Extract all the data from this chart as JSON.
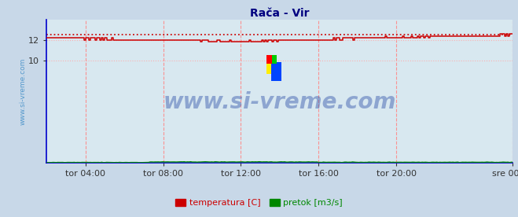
{
  "title": "Rača - Vir",
  "title_color": "#000080",
  "bg_color": "#c8d8e8",
  "plot_bg_color": "#d8e8f0",
  "ylim": [
    0,
    14
  ],
  "yticks": [
    10,
    12
  ],
  "xlim": [
    0,
    288
  ],
  "xtick_positions": [
    24,
    72,
    120,
    168,
    216,
    288
  ],
  "xtick_labels": [
    "tor 04:00",
    "tor 08:00",
    "tor 12:00",
    "tor 16:00",
    "tor 20:00",
    "sre 00:00"
  ],
  "grid_color_v": "#ff8888",
  "grid_color_h": "#ffaaaa",
  "temp_color": "#cc0000",
  "pretok_color": "#008800",
  "visina_color": "#8888ff",
  "temp_max_value": 12.55,
  "watermark_text": "www.si-vreme.com",
  "watermark_color": "#3355aa",
  "watermark_alpha": 0.45,
  "watermark_fontsize": 20,
  "legend_temp_label": "temperatura [C]",
  "legend_pretok_label": "pretok [m3/s]",
  "ylabel_text": "www.si-vreme.com",
  "ylabel_color": "#5599cc",
  "ylabel_fontsize": 6.5,
  "axis_color": "#0000cc",
  "tick_label_color": "#333333",
  "tick_fontsize": 8
}
